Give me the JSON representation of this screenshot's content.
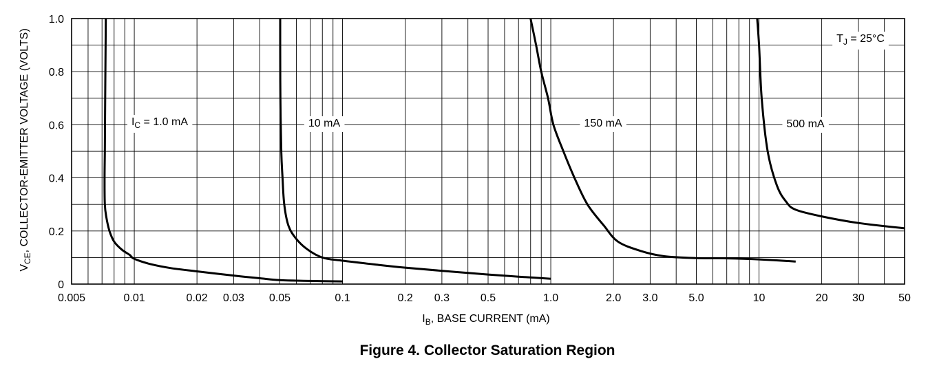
{
  "caption": "Figure 4. Collector Saturation Region",
  "chart_data": {
    "type": "line",
    "x_scale": "log",
    "xlim": [
      0.005,
      50
    ],
    "ylim": [
      0,
      1.0
    ],
    "xlabel": {
      "main": "I",
      "sub": "B",
      "rest": ", BASE CURRENT (mA)"
    },
    "ylabel": {
      "main": "V",
      "sub": "CE",
      "rest": ", COLLECTOR-EMITTER VOLTAGE (VOLTS)"
    },
    "x_ticks": [
      {
        "value": 0.005,
        "label": "0.005"
      },
      {
        "value": 0.01,
        "label": "0.01"
      },
      {
        "value": 0.02,
        "label": "0.02"
      },
      {
        "value": 0.03,
        "label": "0.03"
      },
      {
        "value": 0.05,
        "label": "0.05"
      },
      {
        "value": 0.1,
        "label": "0.1"
      },
      {
        "value": 0.2,
        "label": "0.2"
      },
      {
        "value": 0.3,
        "label": "0.3"
      },
      {
        "value": 0.5,
        "label": "0.5"
      },
      {
        "value": 1.0,
        "label": "1.0"
      },
      {
        "value": 2.0,
        "label": "2.0"
      },
      {
        "value": 3.0,
        "label": "3.0"
      },
      {
        "value": 5.0,
        "label": "5.0"
      },
      {
        "value": 10,
        "label": "10"
      },
      {
        "value": 20,
        "label": "20"
      },
      {
        "value": 30,
        "label": "30"
      },
      {
        "value": 50,
        "label": "50"
      }
    ],
    "y_ticks": [
      {
        "value": 0,
        "label": "0"
      },
      {
        "value": 0.2,
        "label": "0.2"
      },
      {
        "value": 0.4,
        "label": "0.4"
      },
      {
        "value": 0.6,
        "label": "0.6"
      },
      {
        "value": 0.8,
        "label": "0.8"
      },
      {
        "value": 1.0,
        "label": "1.0"
      }
    ],
    "y_gridlines": [
      0,
      0.1,
      0.2,
      0.3,
      0.4,
      0.5,
      0.6,
      0.7,
      0.8,
      0.9,
      1.0
    ],
    "x_gridlines": [
      0.005,
      0.006,
      0.007,
      0.008,
      0.009,
      0.01,
      0.02,
      0.03,
      0.04,
      0.05,
      0.06,
      0.07,
      0.08,
      0.09,
      0.1,
      0.2,
      0.3,
      0.4,
      0.5,
      0.6,
      0.7,
      0.8,
      0.9,
      1,
      2,
      3,
      4,
      5,
      6,
      7,
      8,
      9,
      10,
      20,
      30,
      40,
      50
    ],
    "series": [
      {
        "name": "1.0 mA",
        "points": [
          [
            0.0073,
            1.0
          ],
          [
            0.00728,
            0.9
          ],
          [
            0.00725,
            0.7
          ],
          [
            0.00722,
            0.5
          ],
          [
            0.0072,
            0.4
          ],
          [
            0.00722,
            0.3
          ],
          [
            0.00735,
            0.25
          ],
          [
            0.0076,
            0.2
          ],
          [
            0.008,
            0.16
          ],
          [
            0.0087,
            0.13
          ],
          [
            0.0095,
            0.11
          ],
          [
            0.01,
            0.095
          ],
          [
            0.012,
            0.075
          ],
          [
            0.015,
            0.06
          ],
          [
            0.02,
            0.048
          ],
          [
            0.03,
            0.032
          ],
          [
            0.04,
            0.022
          ],
          [
            0.05,
            0.015
          ],
          [
            0.07,
            0.012
          ],
          [
            0.1,
            0.01
          ]
        ]
      },
      {
        "name": "10 mA",
        "points": [
          [
            0.0502,
            1.0
          ],
          [
            0.0502,
            0.9
          ],
          [
            0.0503,
            0.7
          ],
          [
            0.0508,
            0.5
          ],
          [
            0.0515,
            0.4
          ],
          [
            0.0525,
            0.3
          ],
          [
            0.055,
            0.22
          ],
          [
            0.06,
            0.17
          ],
          [
            0.068,
            0.13
          ],
          [
            0.08,
            0.1
          ],
          [
            0.1,
            0.088
          ],
          [
            0.15,
            0.072
          ],
          [
            0.2,
            0.062
          ],
          [
            0.3,
            0.05
          ],
          [
            0.5,
            0.036
          ],
          [
            0.7,
            0.028
          ],
          [
            1.0,
            0.02
          ]
        ]
      },
      {
        "name": "150 mA",
        "points": [
          [
            0.8,
            1.0
          ],
          [
            0.85,
            0.9
          ],
          [
            0.9,
            0.8
          ],
          [
            0.97,
            0.7
          ],
          [
            1.03,
            0.6
          ],
          [
            1.15,
            0.5
          ],
          [
            1.3,
            0.4
          ],
          [
            1.5,
            0.3
          ],
          [
            1.8,
            0.22
          ],
          [
            2.1,
            0.16
          ],
          [
            2.7,
            0.125
          ],
          [
            3.5,
            0.105
          ],
          [
            5.0,
            0.098
          ],
          [
            7.0,
            0.097
          ],
          [
            10,
            0.093
          ],
          [
            15,
            0.085
          ]
        ]
      },
      {
        "name": "500 mA",
        "points": [
          [
            9.8,
            1.0
          ],
          [
            10,
            0.9
          ],
          [
            10.3,
            0.7
          ],
          [
            11,
            0.5
          ],
          [
            12.2,
            0.37
          ],
          [
            13.5,
            0.31
          ],
          [
            15,
            0.28
          ],
          [
            20,
            0.255
          ],
          [
            30,
            0.23
          ],
          [
            50,
            0.21
          ]
        ]
      }
    ],
    "annotations": [
      {
        "main": "I",
        "sub": "C",
        "rest": " = 1.0 mA"
      },
      {
        "main": "",
        "sub": "",
        "rest": "10 mA"
      },
      {
        "main": "",
        "sub": "",
        "rest": "150 mA"
      },
      {
        "main": "",
        "sub": "",
        "rest": "500 mA"
      },
      {
        "main": "T",
        "sub": "J",
        "rest": " = 25°C"
      }
    ]
  }
}
